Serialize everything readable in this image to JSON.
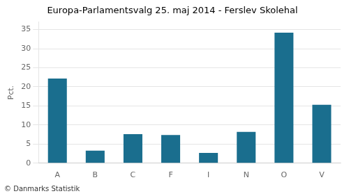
{
  "chart_data": {
    "type": "bar",
    "title": "Europa-Parlamentsvalg 25. maj 2014 - Ferslev Skolehal",
    "ylabel": "Pct.",
    "footer": "© Danmarks Statistik",
    "categories": [
      "A",
      "B",
      "C",
      "F",
      "I",
      "N",
      "O",
      "V"
    ],
    "values": [
      22.2,
      3.3,
      7.6,
      7.4,
      2.7,
      8.2,
      34.2,
      15.3
    ],
    "color": "#1a6e8e",
    "ylim": [
      0,
      37
    ],
    "yticks": [
      0,
      5,
      10,
      15,
      20,
      25,
      30,
      35
    ],
    "grid": true
  }
}
